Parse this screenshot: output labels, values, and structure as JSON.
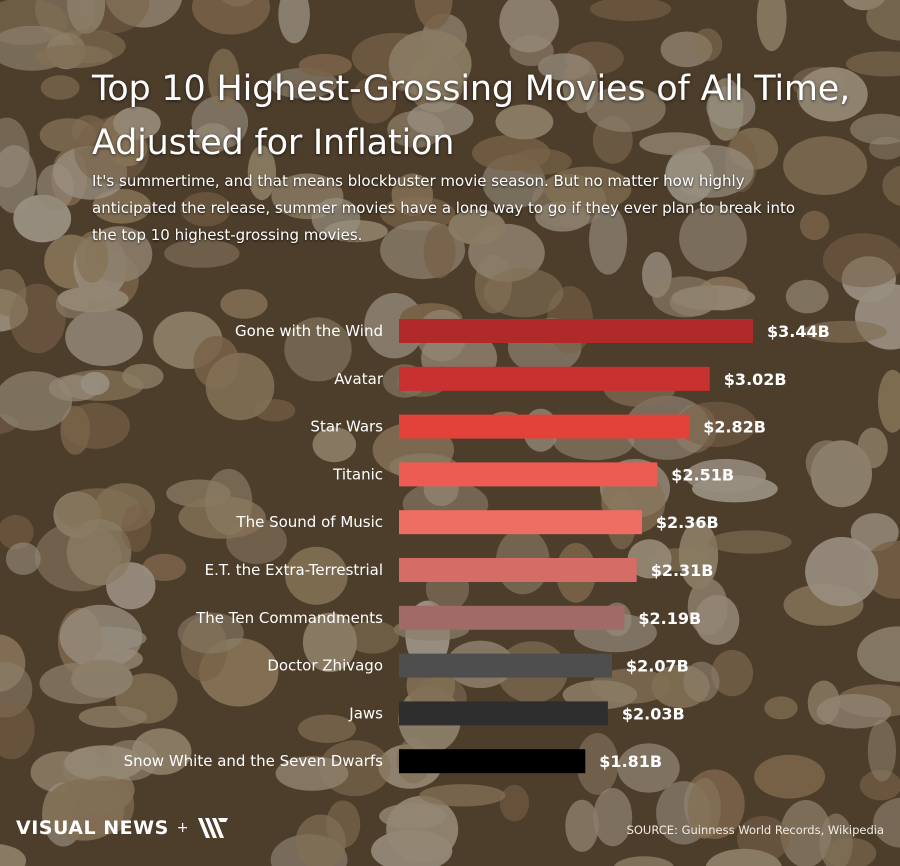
{
  "title": "Top 10 Highest-Grossing Movies of All Time, Adjusted for Inflation",
  "subtitle": "It's summertime, and that means blockbuster movie season. But no matter how highly anticipated the release, summer movies have a long way to go if they ever plan to break into the top 10 highest-grossing movies.",
  "footer": {
    "brand": "VISUAL NEWS",
    "plus": "+",
    "source": "SOURCE: Guinness World Records, Wikipedia"
  },
  "chart_data": {
    "type": "bar",
    "orientation": "horizontal",
    "title": "Top 10 Highest-Grossing Movies of All Time, Adjusted for Inflation",
    "xlabel": "",
    "ylabel": "",
    "unit": "billion USD",
    "categories": [
      "Gone with the Wind",
      "Avatar",
      "Star Wars",
      "Titanic",
      "The Sound of Music",
      "E.T. the Extra-Terrestrial",
      "The Ten Commandments",
      "Doctor Zhivago",
      "Jaws",
      "Snow White and the Seven Dwarfs"
    ],
    "values": [
      3.44,
      3.02,
      2.82,
      2.51,
      2.36,
      2.31,
      2.19,
      2.07,
      2.03,
      1.81
    ],
    "data_labels": [
      "$3.44B",
      "$3.02B",
      "$2.82B",
      "$2.51B",
      "$2.36B",
      "$2.31B",
      "$2.19B",
      "$2.07B",
      "$2.03B",
      "$1.81B"
    ],
    "colors": [
      "#b02a2a",
      "#c93030",
      "#e2423a",
      "#ec5c52",
      "#ee6e64",
      "#d56c66",
      "#a06a66",
      "#4e4e4e",
      "#2e2e2e",
      "#000000"
    ],
    "xlim": [
      0,
      3.44
    ],
    "grid": false,
    "legend": "none"
  }
}
